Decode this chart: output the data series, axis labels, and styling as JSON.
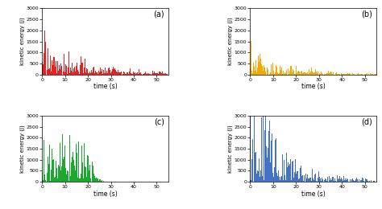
{
  "title_a": "(a)",
  "title_b": "(b)",
  "title_c": "(c)",
  "title_d": "(d)",
  "xlabel": "time (s)",
  "ylabel": "kinetic energy (J)",
  "color_a": "#e82020",
  "color_b": "#f5a800",
  "color_c": "#1aa830",
  "color_d": "#4472c4",
  "ylim": [
    0,
    3000
  ],
  "xlim": [
    0,
    55
  ],
  "yticks": [
    0,
    500,
    1000,
    1500,
    2000,
    2500,
    3000
  ],
  "xticks": [
    0,
    10,
    20,
    30,
    40,
    50
  ],
  "bar_width": 0.25,
  "n_bars": 220
}
